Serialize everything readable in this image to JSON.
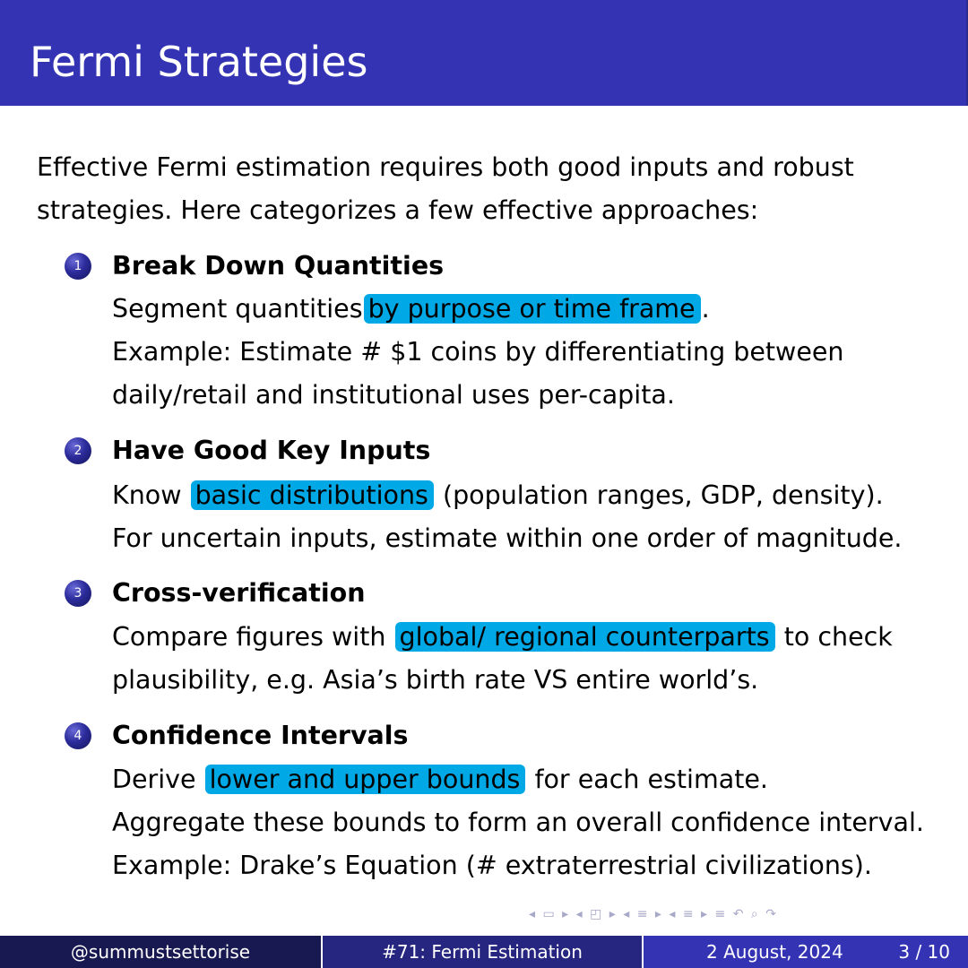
{
  "slide": {
    "title": "Fermi Strategies",
    "intro_line1": "Effective Fermi estimation requires both good inputs and robust",
    "intro_line2": "strategies.  Here categorizes a few effective approaches:"
  },
  "items": [
    {
      "number": "1",
      "title": "Break Down Quantities",
      "l1_pre": "Segment quantities",
      "l1_hl": "by purpose or time frame",
      "l1_post": ".",
      "l2": "Example:  Estimate # $1 coins by differentiating between",
      "l3": "daily/retail and institutional uses per-capita."
    },
    {
      "number": "2",
      "title": "Have Good Key Inputs",
      "l1_pre": "Know",
      "l1_hl": "basic distributions",
      "l1_post": "(population ranges, GDP, density).",
      "l2": "For uncertain inputs, estimate within one order of magnitude."
    },
    {
      "number": "3",
      "title": "Cross-verification",
      "l1_pre": "Compare figures with",
      "l1_hl": "global/ regional counterparts",
      "l1_post": "to check",
      "l2": "plausibility, e.g.  Asia’s birth rate VS entire world’s."
    },
    {
      "number": "4",
      "title": "Confidence Intervals",
      "l1_pre": "Derive",
      "l1_hl": "lower and upper bounds",
      "l1_post": "for each estimate.",
      "l2": "Aggregate these bounds to form an overall confidence interval.",
      "l3": "Example:  Drake’s Equation (# extraterrestrial civilizations)."
    }
  ],
  "nav": {
    "icons": "◂ ▭ ▸  ◂ ◰ ▸  ◂ ≡ ▸  ◂ ≡ ▸   ≡   ↶ ⌕ ↷"
  },
  "footer": {
    "author": "@summustsettorise",
    "talk": "#71: Fermi Estimation",
    "date": "2 August, 2024",
    "page": "3 / 10"
  },
  "colors": {
    "title_bar": "#3333b3",
    "highlight": "#00a9e6",
    "footer_dark": "#191952",
    "footer_mid": "#262680",
    "footer_light": "#3333b3"
  }
}
